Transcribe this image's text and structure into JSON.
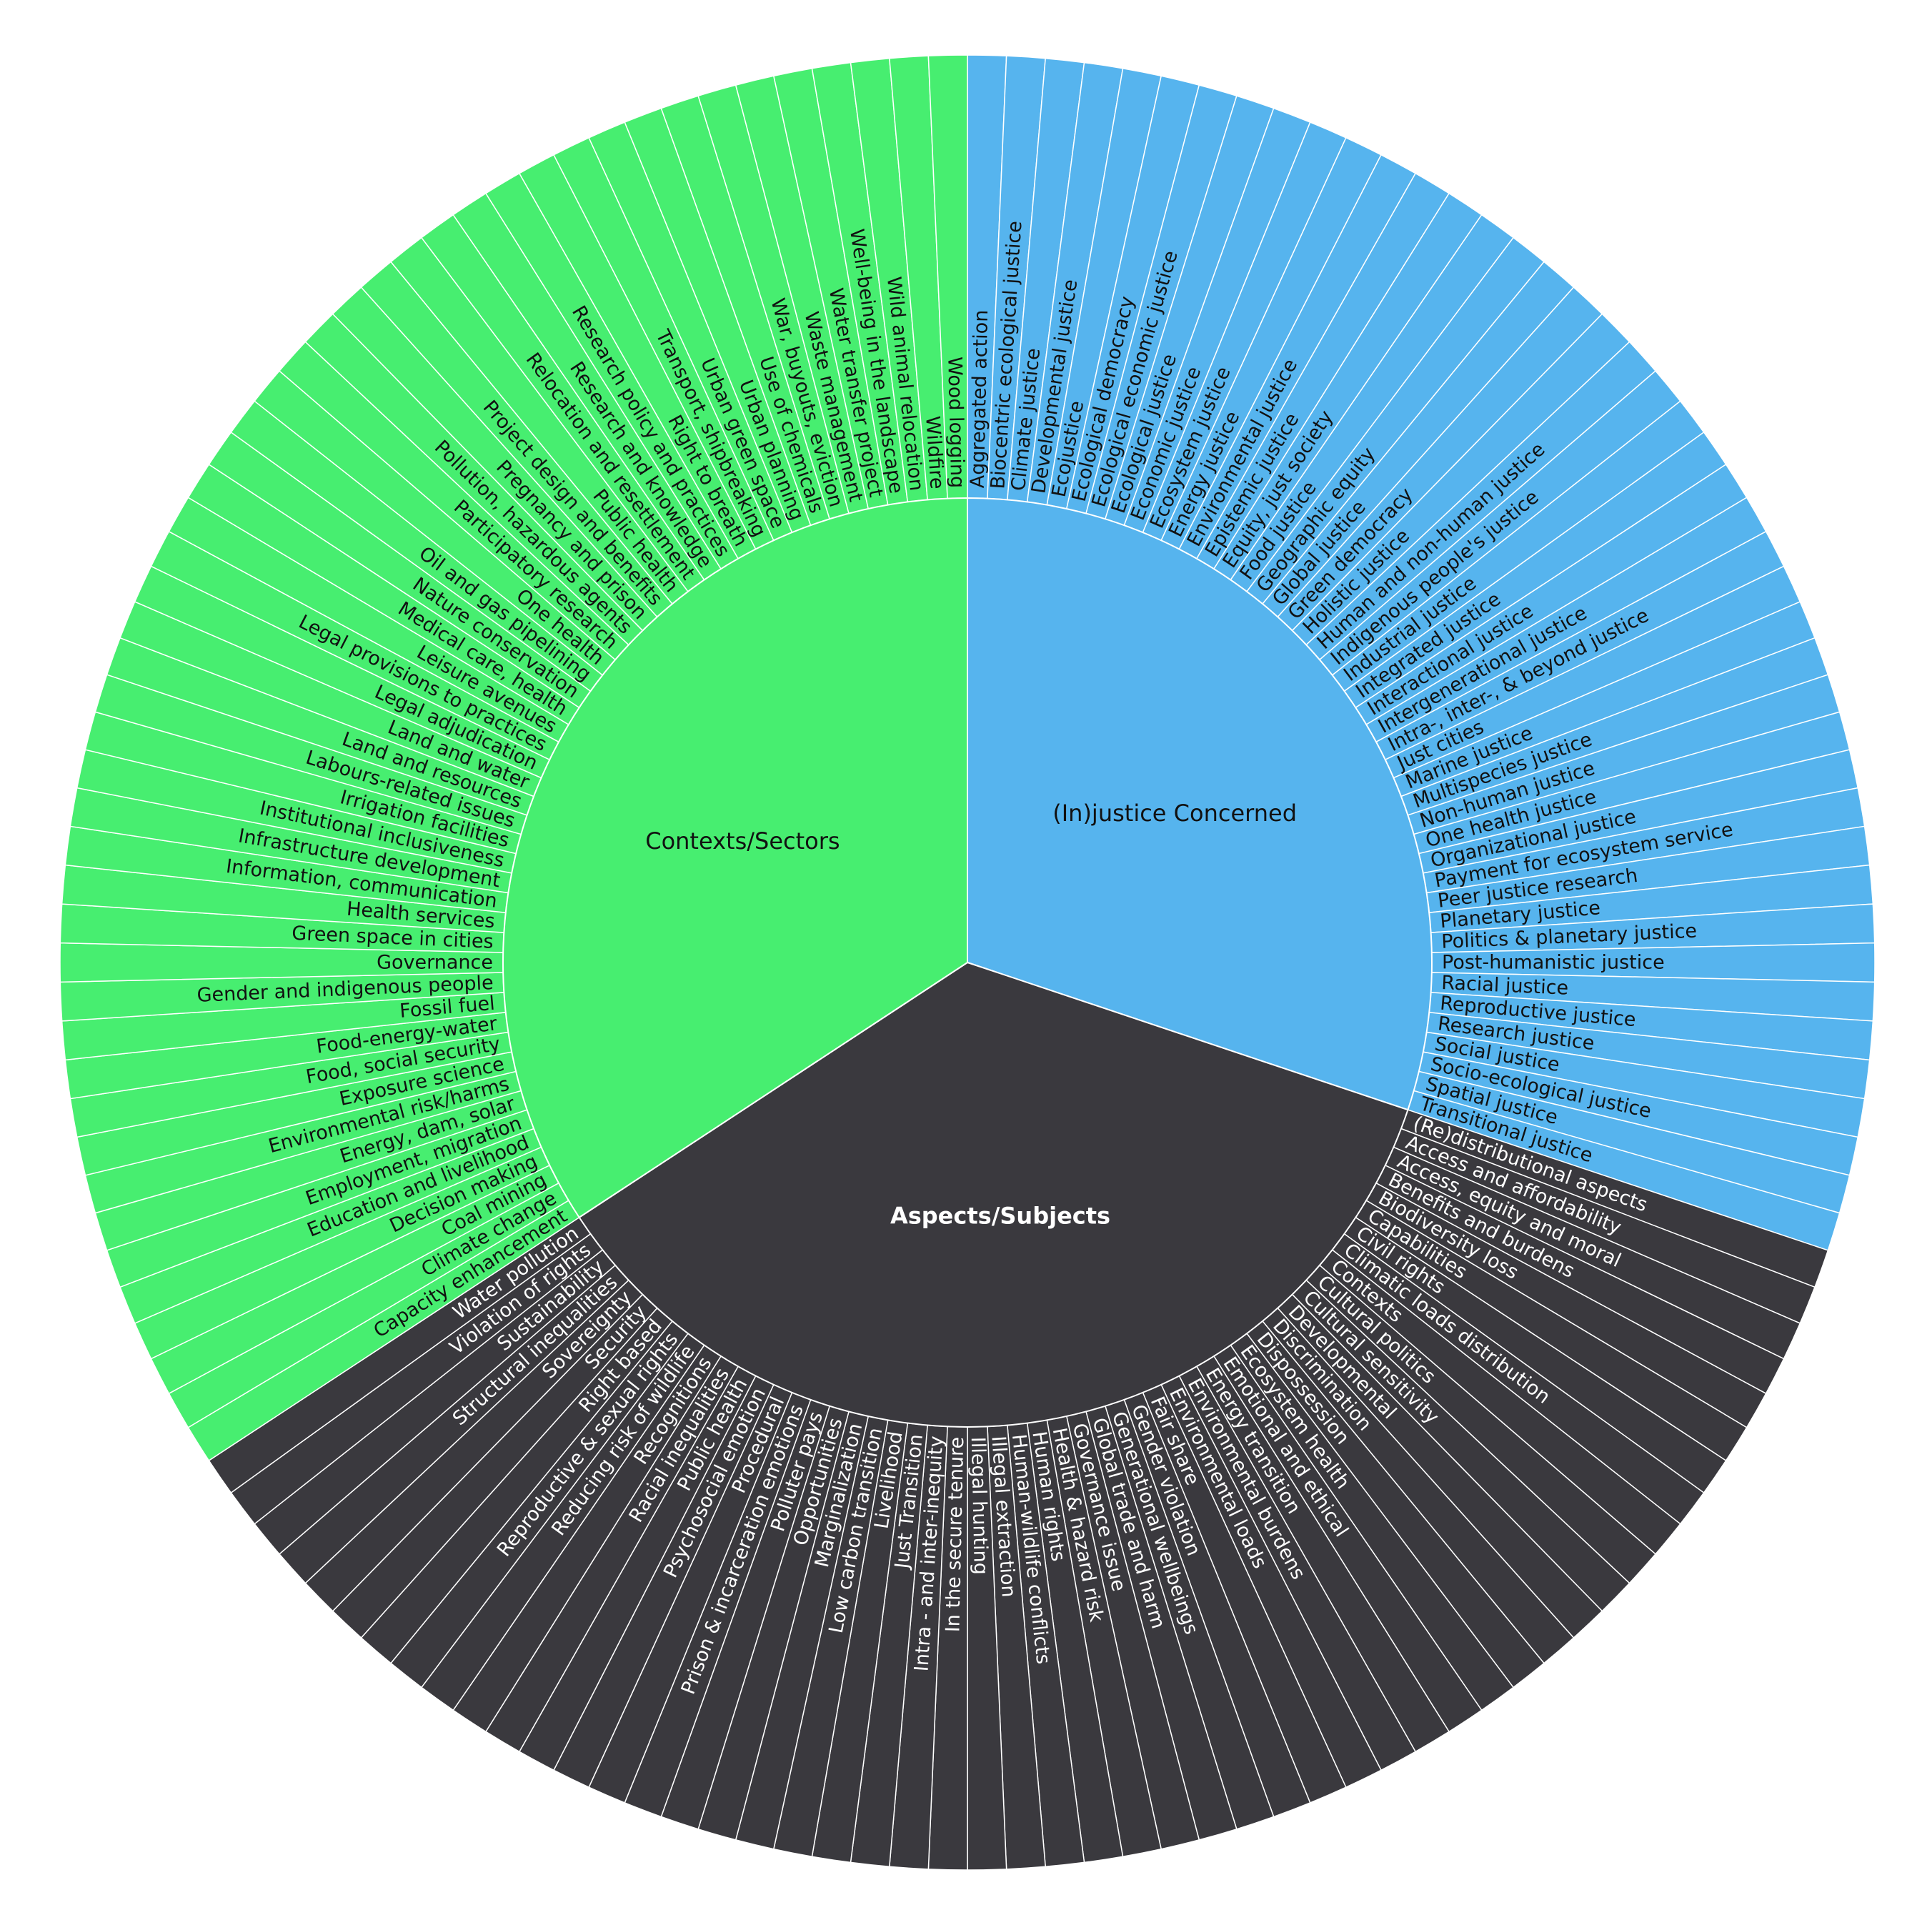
{
  "chart_data": {
    "type": "sunburst",
    "categories": [
      {
        "name": "(In)justice Concerned",
        "color": "#56b4ee",
        "items": [
          "Aggregated action",
          "Biocentric ecological justice",
          "Climate justice",
          "Developmental justice",
          "Ecojustice",
          "Ecological democracy",
          "Ecological economic justice",
          "Ecological justice",
          "Economic justice",
          "Ecosystem justice",
          "Energy justice",
          "Environmental justice",
          "Epistemic justice",
          "Equity, just society",
          "Food justice",
          "Geographic equity",
          "Global justice",
          "Green democracy",
          "Holistic justice",
          "Human and non-human justice",
          "Indigenous people's justice",
          "Industrial justice",
          "Integrated justice",
          "Interactional justice",
          "Intergenerational justice",
          "Intra-, inter-, & beyond justice",
          "Just cities",
          "Marine justice",
          "Multispecies justice",
          "Non-human justice",
          "One health justice",
          "Organizational justice",
          "Payment for ecosystem service",
          "Peer justice research",
          "Planetary justice",
          "Politics & planetary justice",
          "Post-humanistic justice",
          "Racial justice",
          "Reproductive justice",
          "Research justice",
          "Social justice",
          "Socio-ecological justice",
          "Spatial justice",
          "Transitional justice"
        ]
      },
      {
        "name": "Aspects/Subjects",
        "color": "#3a393e",
        "items": [
          "(Re)distributional aspects",
          "Access and affordability",
          "Access, equity and moral",
          "Benefits and burdens",
          "Biodiversity loss",
          "Capabilities",
          "Civil rights",
          "Climatic loads distribution",
          "Contexts",
          "Cultural politics",
          "Cultural sensitivity",
          "Developmental",
          "Discrimination",
          "Dispossession",
          "Ecosystem health",
          "Emotional and ethical",
          "Energy transition",
          "Environmental burdens",
          "Environmental loads",
          "Fair share",
          "Gender violation",
          "Generational wellbeings",
          "Global trade and harm",
          "Governance issue",
          "Health & hazard risk",
          "Human rights",
          "Human-wildlife conflicts",
          "Illegal extraction",
          "Illegal hunting",
          "In the secure tenure",
          "Intra - and inter-inequity",
          "Just Transition",
          "Livelihood",
          "Low carbon transition",
          "Marginalization",
          "Opportunities",
          "Polluter pays",
          "Prison & incarceration emotions",
          "Procedural",
          "Psychosocial emotion",
          "Public health",
          "Racial inequalities",
          "Recognitions",
          "Reducing risk of wildlife",
          "Reproductive & sexual rights",
          "Right based",
          "Security",
          "Sovereignty",
          "Structural inequalities",
          "Sustainability",
          "Violation of rights",
          "Water pollution"
        ]
      },
      {
        "name": "Contexts/Sectors",
        "color": "#47ee70",
        "items": [
          "Capacity enhancement",
          "Climate change",
          "Coal mining",
          "Decision making",
          "Education and livelihood",
          "Employment, migration",
          "Energy, dam, solar",
          "Environmental risk/harms",
          "Exposure science",
          "Food, social security",
          "Food-energy-water",
          "Fossil fuel",
          "Gender and indigenous people",
          "Governance",
          "Green space in cities",
          "Health services",
          "Information, communication",
          "Infrastructure development",
          "Institutional inclusiveness",
          "Irrigation facilities",
          "Labours-related issues",
          "Land and resources",
          "Land and water",
          "Legal adjudication",
          "Legal provisions to practices",
          "Leisure avenues",
          "Medical care, health",
          "Nature conservation",
          "Oil and gas pipelining",
          "One health",
          "Participatory research",
          "Pollution, hazardous agents",
          "Pregnancy and prison",
          "Project design and benefits",
          "Public health",
          "Relocation and resettlement",
          "Research and knowledge",
          "Research policy and practices",
          "Right to breath",
          "Transport, shipbreaking",
          "Urban green space",
          "Urban planning",
          "Use of chemicals",
          "War, buyouts, eviction",
          "Waste management",
          "Water transfer project",
          "Well-being in the landscape",
          "Wild animal relocation",
          "Wildfire",
          "Wood logging"
        ]
      }
    ]
  }
}
